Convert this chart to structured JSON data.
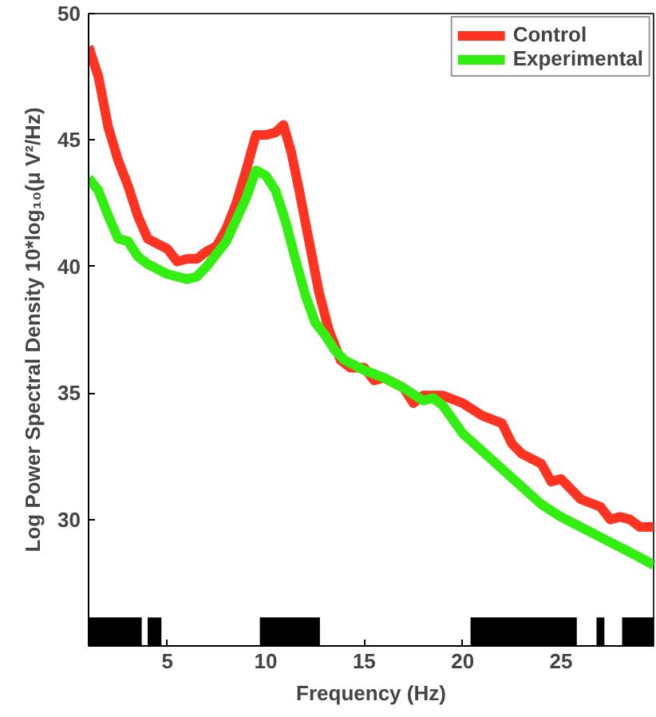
{
  "chart_data": {
    "type": "line",
    "xlabel": "Frequency (Hz)",
    "ylabel": "Log Power Spectral Density 10*log₁₀(μ V²/Hz)",
    "xlim": [
      1,
      29.7
    ],
    "ylim": [
      25,
      50
    ],
    "xticks": [
      5,
      10,
      15,
      20,
      25
    ],
    "yticks": [
      30,
      35,
      40,
      45,
      50
    ],
    "grid": false,
    "legend": "top right",
    "line_style": "solid",
    "marker": "none",
    "series": [
      {
        "name": "Control",
        "color": "#ff3322",
        "x": [
          1,
          1.5,
          2,
          2.5,
          3,
          3.5,
          4,
          4.5,
          5,
          5.5,
          6,
          6.5,
          7,
          7.5,
          8,
          8.5,
          9,
          9.5,
          10,
          10.5,
          10.9,
          11.3,
          11.7,
          12.2,
          12.7,
          13.2,
          13.8,
          14.3,
          15,
          15.5,
          16,
          17,
          17.5,
          18,
          19,
          20,
          21,
          22,
          22.5,
          23,
          24,
          24.5,
          25,
          26,
          27,
          27.5,
          28,
          28.5,
          29,
          29.7
        ],
        "values": [
          48.7,
          47.5,
          45.5,
          44.2,
          43.2,
          42,
          41.1,
          40.9,
          40.7,
          40.2,
          40.3,
          40.3,
          40.6,
          40.8,
          41.5,
          42.5,
          43.8,
          45.2,
          45.2,
          45.3,
          45.6,
          44.5,
          43,
          41,
          39,
          37.5,
          36.3,
          36,
          36,
          35.5,
          35.6,
          35.2,
          34.6,
          34.9,
          34.9,
          34.6,
          34.1,
          33.8,
          33,
          32.6,
          32.2,
          31.5,
          31.6,
          30.8,
          30.5,
          30,
          30.1,
          30,
          29.7,
          29.7
        ]
      },
      {
        "name": "Experimental",
        "color": "#33ee11",
        "x": [
          1,
          1.5,
          2,
          2.5,
          3,
          3.5,
          4,
          5,
          6,
          6.5,
          7,
          8,
          9,
          9.5,
          10,
          10.5,
          11,
          11.5,
          12,
          12.5,
          13,
          13.5,
          14,
          15,
          16,
          17,
          18,
          18.5,
          19,
          20,
          21,
          22,
          23,
          24,
          25,
          26,
          27,
          28,
          29,
          29.7
        ],
        "values": [
          43.5,
          43,
          42,
          41.1,
          41,
          40.4,
          40.1,
          39.7,
          39.5,
          39.6,
          40,
          41,
          42.7,
          43.8,
          43.6,
          43,
          41.8,
          40.3,
          38.9,
          37.8,
          37.3,
          36.7,
          36.3,
          35.9,
          35.6,
          35.2,
          34.7,
          34.8,
          34.5,
          33.4,
          32.7,
          32,
          31.3,
          30.6,
          30.1,
          29.7,
          29.3,
          28.9,
          28.5,
          28.2
        ]
      }
    ],
    "bands": [
      {
        "axis": "x",
        "from": 1.0,
        "to": 3.7,
        "color": "#000000"
      },
      {
        "axis": "x",
        "from": 4.0,
        "to": 4.7,
        "color": "#000000"
      },
      {
        "axis": "x",
        "from": 9.7,
        "to": 12.75,
        "color": "#000000"
      },
      {
        "axis": "x",
        "from": 20.4,
        "to": 25.8,
        "color": "#000000"
      },
      {
        "axis": "x",
        "from": 26.8,
        "to": 27.2,
        "color": "#000000"
      },
      {
        "axis": "x",
        "from": 28.1,
        "to": 29.7,
        "color": "#000000"
      }
    ]
  }
}
